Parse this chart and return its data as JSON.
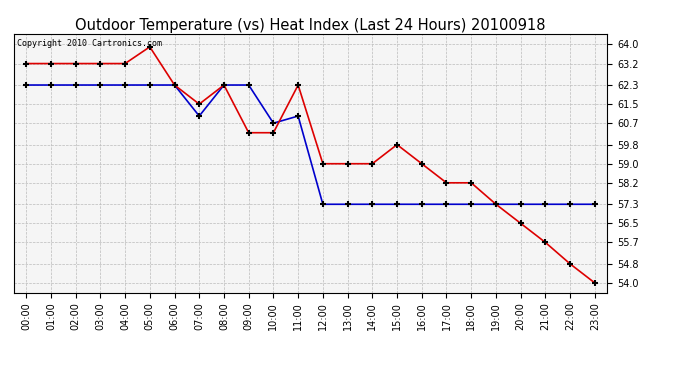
{
  "title": "Outdoor Temperature (vs) Heat Index (Last 24 Hours) 20100918",
  "copyright_text": "Copyright 2010 Cartronics.com",
  "hours": [
    "00:00",
    "01:00",
    "02:00",
    "03:00",
    "04:00",
    "05:00",
    "06:00",
    "07:00",
    "08:00",
    "09:00",
    "10:00",
    "11:00",
    "12:00",
    "13:00",
    "14:00",
    "15:00",
    "16:00",
    "17:00",
    "18:00",
    "19:00",
    "20:00",
    "21:00",
    "22:00",
    "23:00"
  ],
  "temp_red": [
    63.2,
    63.2,
    63.2,
    63.2,
    63.2,
    63.9,
    62.3,
    61.5,
    62.3,
    60.3,
    60.3,
    62.3,
    59.0,
    59.0,
    59.0,
    59.8,
    59.0,
    58.2,
    58.2,
    57.3,
    56.5,
    55.7,
    54.8,
    54.0
  ],
  "heat_blue": [
    62.3,
    62.3,
    62.3,
    62.3,
    62.3,
    62.3,
    62.3,
    61.0,
    62.3,
    62.3,
    60.7,
    61.0,
    57.3,
    57.3,
    57.3,
    57.3,
    57.3,
    57.3,
    57.3,
    57.3,
    57.3,
    57.3,
    57.3,
    57.3
  ],
  "ylim_min": 53.6,
  "ylim_max": 64.45,
  "yticks": [
    54.0,
    54.8,
    55.7,
    56.5,
    57.3,
    58.2,
    59.0,
    59.8,
    60.7,
    61.5,
    62.3,
    63.2,
    64.0
  ],
  "bg_color": "#ffffff",
  "plot_bg_color": "#f5f5f5",
  "grid_color": "#bbbbbb",
  "red_color": "#dd0000",
  "blue_color": "#0000cc",
  "title_fontsize": 10.5,
  "tick_fontsize": 7,
  "copyright_fontsize": 6
}
